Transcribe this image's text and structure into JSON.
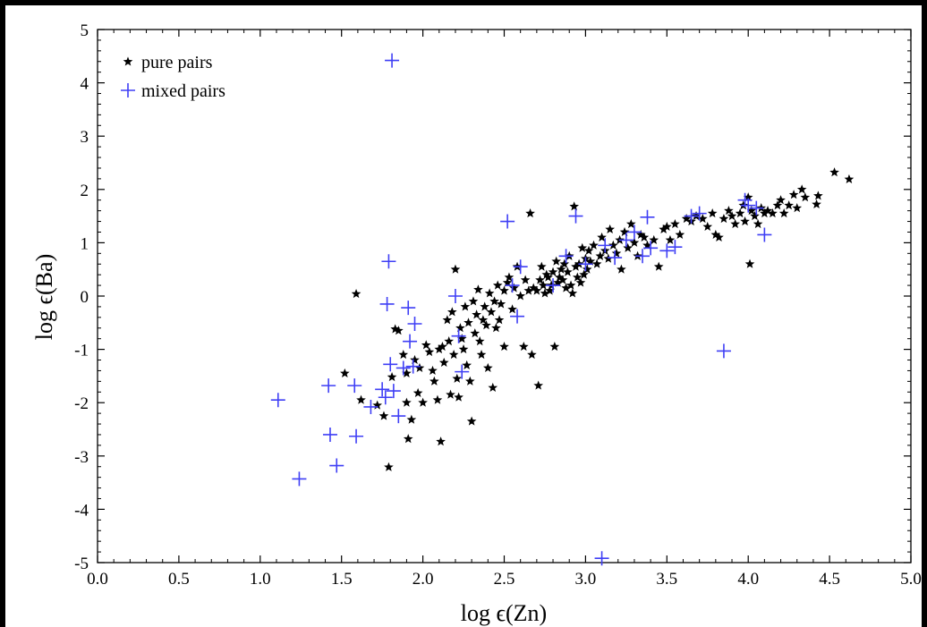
{
  "chart_data": {
    "type": "scatter",
    "xlabel": "log ϵ(Zn)",
    "ylabel": "log ϵ(Ba)",
    "xlim": [
      0.0,
      5.0
    ],
    "ylim": [
      -5,
      5
    ],
    "xticks": [
      "0.0",
      "0.5",
      "1.0",
      "1.5",
      "2.0",
      "2.5",
      "3.0",
      "3.5",
      "4.0",
      "4.5",
      "5.0"
    ],
    "yticks": [
      "5",
      "4",
      "3",
      "2",
      "1",
      "0",
      "-1",
      "-2",
      "-3",
      "-4",
      "-5"
    ],
    "legend_position": "top-left",
    "colors": {
      "background": "#000000",
      "plot": "#ffffff",
      "pure": "#000000",
      "mixed": "#3f3ff5"
    },
    "series": [
      {
        "name": "pure pairs",
        "marker": "star",
        "points": [
          [
            1.59,
            0.04
          ],
          [
            1.52,
            -1.45
          ],
          [
            1.62,
            -1.95
          ],
          [
            1.72,
            -2.05
          ],
          [
            1.76,
            -2.25
          ],
          [
            1.79,
            -3.21
          ],
          [
            1.81,
            -1.52
          ],
          [
            1.83,
            -0.62
          ],
          [
            1.85,
            -0.65
          ],
          [
            1.88,
            -1.1
          ],
          [
            1.9,
            -1.45
          ],
          [
            1.9,
            -2.0
          ],
          [
            1.91,
            -2.68
          ],
          [
            1.93,
            -2.32
          ],
          [
            1.95,
            -1.2
          ],
          [
            1.97,
            -1.82
          ],
          [
            1.98,
            -1.35
          ],
          [
            2.0,
            -2.0
          ],
          [
            2.02,
            -0.92
          ],
          [
            2.04,
            -1.05
          ],
          [
            2.06,
            -1.4
          ],
          [
            2.07,
            -1.6
          ],
          [
            2.09,
            -1.95
          ],
          [
            2.1,
            -1.0
          ],
          [
            2.11,
            -2.73
          ],
          [
            2.12,
            -0.95
          ],
          [
            2.13,
            -1.25
          ],
          [
            2.15,
            -0.45
          ],
          [
            2.16,
            -0.85
          ],
          [
            2.17,
            -1.85
          ],
          [
            2.18,
            -0.3
          ],
          [
            2.19,
            -1.1
          ],
          [
            2.2,
            0.5
          ],
          [
            2.21,
            -1.55
          ],
          [
            2.22,
            -1.9
          ],
          [
            2.23,
            -0.6
          ],
          [
            2.24,
            -0.8
          ],
          [
            2.25,
            -1.0
          ],
          [
            2.26,
            -0.2
          ],
          [
            2.27,
            -1.3
          ],
          [
            2.28,
            -0.5
          ],
          [
            2.29,
            -1.6
          ],
          [
            2.3,
            -2.35
          ],
          [
            2.31,
            -0.1
          ],
          [
            2.32,
            -0.7
          ],
          [
            2.33,
            -0.35
          ],
          [
            2.34,
            0.12
          ],
          [
            2.35,
            -0.85
          ],
          [
            2.36,
            -1.1
          ],
          [
            2.37,
            -0.45
          ],
          [
            2.38,
            -0.2
          ],
          [
            2.39,
            -0.55
          ],
          [
            2.4,
            -1.35
          ],
          [
            2.41,
            0.05
          ],
          [
            2.42,
            -0.3
          ],
          [
            2.43,
            -1.72
          ],
          [
            2.44,
            -0.1
          ],
          [
            2.45,
            -0.6
          ],
          [
            2.46,
            0.2
          ],
          [
            2.47,
            -0.45
          ],
          [
            2.48,
            -0.15
          ],
          [
            2.5,
            0.1
          ],
          [
            2.5,
            -0.95
          ],
          [
            2.52,
            0.25
          ],
          [
            2.53,
            0.35
          ],
          [
            2.55,
            -0.25
          ],
          [
            2.56,
            0.15
          ],
          [
            2.58,
            0.55
          ],
          [
            2.6,
            0.0
          ],
          [
            2.62,
            -0.95
          ],
          [
            2.63,
            0.3
          ],
          [
            2.65,
            0.1
          ],
          [
            2.66,
            1.55
          ],
          [
            2.67,
            -1.1
          ],
          [
            2.68,
            0.15
          ],
          [
            2.7,
            0.1
          ],
          [
            2.71,
            -1.68
          ],
          [
            2.72,
            0.3
          ],
          [
            2.73,
            0.55
          ],
          [
            2.74,
            0.2
          ],
          [
            2.75,
            0.05
          ],
          [
            2.76,
            0.4
          ],
          [
            2.77,
            0.35
          ],
          [
            2.78,
            0.1
          ],
          [
            2.79,
            0.2
          ],
          [
            2.8,
            0.45
          ],
          [
            2.81,
            -0.95
          ],
          [
            2.82,
            0.65
          ],
          [
            2.83,
            0.25
          ],
          [
            2.84,
            0.35
          ],
          [
            2.85,
            0.5
          ],
          [
            2.86,
            0.3
          ],
          [
            2.87,
            0.6
          ],
          [
            2.88,
            0.15
          ],
          [
            2.89,
            0.45
          ],
          [
            2.9,
            0.75
          ],
          [
            2.91,
            0.2
          ],
          [
            2.92,
            0.05
          ],
          [
            2.93,
            1.68
          ],
          [
            2.94,
            0.55
          ],
          [
            2.95,
            0.35
          ],
          [
            2.96,
            0.6
          ],
          [
            2.97,
            0.25
          ],
          [
            2.98,
            0.9
          ],
          [
            2.99,
            0.4
          ],
          [
            3.0,
            0.7
          ],
          [
            3.01,
            0.5
          ],
          [
            3.02,
            0.85
          ],
          [
            3.03,
            0.65
          ],
          [
            3.05,
            0.95
          ],
          [
            3.07,
            0.6
          ],
          [
            3.09,
            0.75
          ],
          [
            3.1,
            1.1
          ],
          [
            3.12,
            0.85
          ],
          [
            3.14,
            0.7
          ],
          [
            3.15,
            1.25
          ],
          [
            3.17,
            0.95
          ],
          [
            3.19,
            0.8
          ],
          [
            3.21,
            1.05
          ],
          [
            3.22,
            0.5
          ],
          [
            3.24,
            1.2
          ],
          [
            3.26,
            0.9
          ],
          [
            3.28,
            1.35
          ],
          [
            3.3,
            1.0
          ],
          [
            3.32,
            0.75
          ],
          [
            3.34,
            1.15
          ],
          [
            3.36,
            1.1
          ],
          [
            3.38,
            0.95
          ],
          [
            3.42,
            1.05
          ],
          [
            3.45,
            0.55
          ],
          [
            3.48,
            1.25
          ],
          [
            3.5,
            1.3
          ],
          [
            3.52,
            1.05
          ],
          [
            3.55,
            1.35
          ],
          [
            3.58,
            1.15
          ],
          [
            3.62,
            1.45
          ],
          [
            3.65,
            1.4
          ],
          [
            3.68,
            1.5
          ],
          [
            3.72,
            1.45
          ],
          [
            3.75,
            1.3
          ],
          [
            3.78,
            1.55
          ],
          [
            3.8,
            1.15
          ],
          [
            3.82,
            1.1
          ],
          [
            3.85,
            1.45
          ],
          [
            3.88,
            1.6
          ],
          [
            3.9,
            1.5
          ],
          [
            3.92,
            1.35
          ],
          [
            3.95,
            1.55
          ],
          [
            3.97,
            1.7
          ],
          [
            3.98,
            1.4
          ],
          [
            4.0,
            1.85
          ],
          [
            4.01,
            0.6
          ],
          [
            4.02,
            1.6
          ],
          [
            4.04,
            1.5
          ],
          [
            4.06,
            1.35
          ],
          [
            4.08,
            1.65
          ],
          [
            4.1,
            1.55
          ],
          [
            4.12,
            1.6
          ],
          [
            4.15,
            1.55
          ],
          [
            4.18,
            1.7
          ],
          [
            4.2,
            1.8
          ],
          [
            4.22,
            1.55
          ],
          [
            4.25,
            1.7
          ],
          [
            4.28,
            1.9
          ],
          [
            4.3,
            1.65
          ],
          [
            4.33,
            2.0
          ],
          [
            4.35,
            1.85
          ],
          [
            4.42,
            1.72
          ],
          [
            4.43,
            1.88
          ],
          [
            4.53,
            2.32
          ],
          [
            4.62,
            2.19
          ]
        ]
      },
      {
        "name": "mixed pairs",
        "marker": "plus",
        "points": [
          [
            1.81,
            4.42
          ],
          [
            1.11,
            -1.95
          ],
          [
            1.24,
            -3.43
          ],
          [
            1.42,
            -1.68
          ],
          [
            1.43,
            -2.6
          ],
          [
            1.47,
            -3.18
          ],
          [
            1.58,
            -1.68
          ],
          [
            1.59,
            -2.63
          ],
          [
            1.68,
            -2.08
          ],
          [
            1.75,
            -1.75
          ],
          [
            1.77,
            -1.9
          ],
          [
            1.78,
            -0.15
          ],
          [
            1.79,
            0.65
          ],
          [
            1.8,
            -1.28
          ],
          [
            1.82,
            -1.78
          ],
          [
            1.85,
            -2.25
          ],
          [
            1.88,
            -1.35
          ],
          [
            1.91,
            -0.22
          ],
          [
            1.92,
            -0.85
          ],
          [
            1.94,
            -1.32
          ],
          [
            1.95,
            -0.52
          ],
          [
            2.2,
            0.0
          ],
          [
            2.22,
            -0.75
          ],
          [
            2.24,
            -1.42
          ],
          [
            2.52,
            1.4
          ],
          [
            2.55,
            0.2
          ],
          [
            2.58,
            -0.38
          ],
          [
            2.6,
            0.55
          ],
          [
            2.8,
            0.2
          ],
          [
            2.88,
            0.75
          ],
          [
            2.94,
            1.5
          ],
          [
            3.0,
            0.6
          ],
          [
            3.1,
            -4.92
          ],
          [
            3.12,
            0.95
          ],
          [
            3.18,
            0.72
          ],
          [
            3.25,
            1.05
          ],
          [
            3.3,
            1.2
          ],
          [
            3.35,
            0.75
          ],
          [
            3.38,
            1.48
          ],
          [
            3.4,
            0.9
          ],
          [
            3.5,
            0.85
          ],
          [
            3.55,
            0.92
          ],
          [
            3.65,
            1.5
          ],
          [
            3.7,
            1.55
          ],
          [
            3.85,
            -1.03
          ],
          [
            3.98,
            1.8
          ],
          [
            4.0,
            1.7
          ],
          [
            4.05,
            1.65
          ],
          [
            4.1,
            1.15
          ]
        ]
      }
    ]
  }
}
